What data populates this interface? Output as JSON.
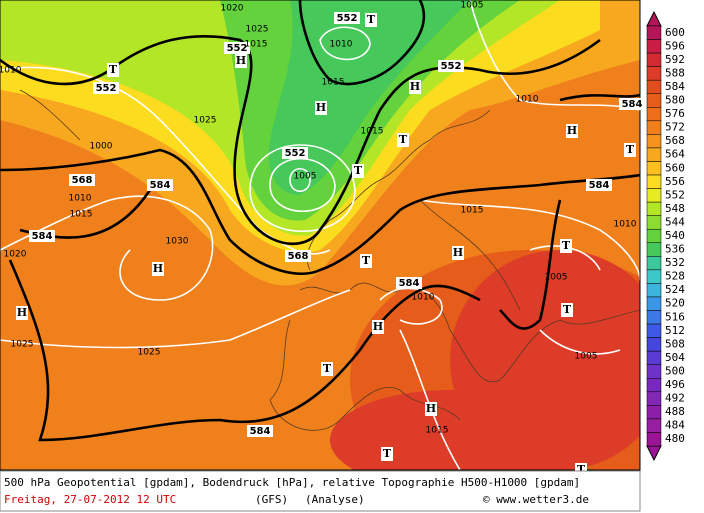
{
  "map": {
    "labels": [
      "552",
      "552",
      "552",
      "568",
      "584",
      "568",
      "584",
      "584",
      "552",
      "584",
      "584",
      "584",
      "552",
      "1020",
      "1025",
      "1010",
      "1015",
      "1000",
      "1010",
      "1015",
      "1020",
      "1030",
      "1025",
      "1025",
      "1005",
      "1010",
      "1015",
      "1015",
      "1010",
      "1015",
      "1005",
      "1005",
      "1010",
      "1015",
      "1025",
      "1005",
      "1010",
      "H",
      "H",
      "H",
      "H",
      "H",
      "H",
      "H",
      "H",
      "H",
      "T",
      "T",
      "T",
      "T",
      "T",
      "T",
      "T",
      "T",
      "T",
      "T",
      "T"
    ],
    "scale": [
      600,
      596,
      592,
      588,
      584,
      580,
      576,
      572,
      568,
      564,
      560,
      556,
      552,
      548,
      544,
      540,
      536,
      532,
      528,
      524,
      520,
      516,
      512,
      508,
      504,
      500,
      496,
      492,
      488,
      484,
      480
    ],
    "colors": [
      "#b4165a",
      "#c81e46",
      "#d22a32",
      "#dc3c28",
      "#e04e1e",
      "#e65c1a",
      "#ec6e1a",
      "#f0801c",
      "#f4941e",
      "#f8a81e",
      "#fcc020",
      "#fcdc1e",
      "#e6ec20",
      "#b4e628",
      "#8cdc32",
      "#64d23c",
      "#46c85a",
      "#3cc89a",
      "#3cc8c8",
      "#3cb4dc",
      "#3c96e6",
      "#3c78e6",
      "#3c5ae6",
      "#4646dc",
      "#5a3cd2",
      "#6e32c8",
      "#7828be",
      "#8228b4",
      "#8c1eaa",
      "#961ea0",
      "#9a1496"
    ]
  },
  "footer": {
    "description": "500 hPa Geopotential [gpdam], Bodendruck [hPa], relative Topographie H500-H1000 [gpdam]",
    "date": "Freitag, 27-07-2012  12 UTC",
    "model": "(GFS)",
    "run": "(Analyse)",
    "source": "© www.wetter3.de"
  }
}
